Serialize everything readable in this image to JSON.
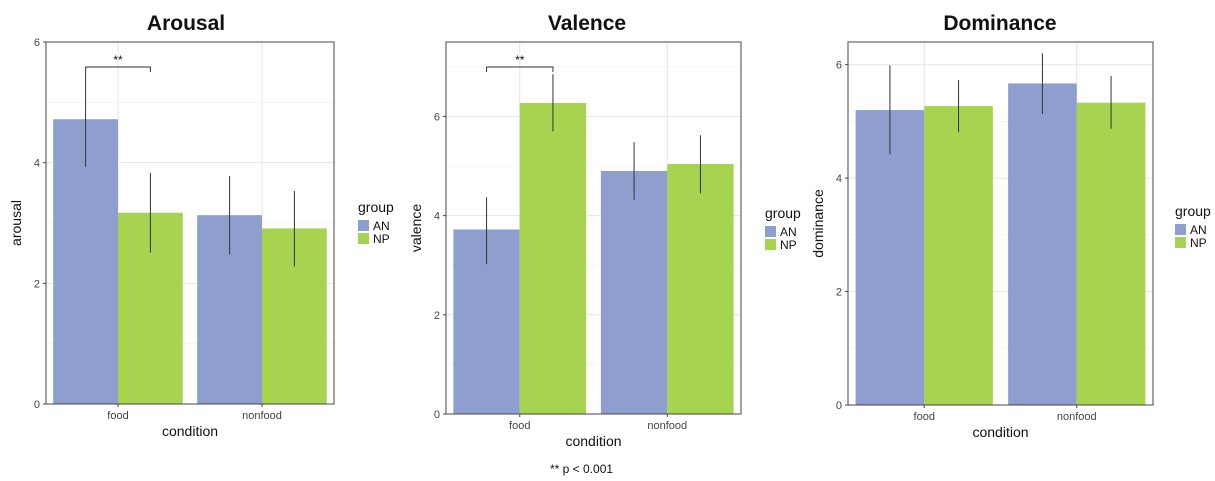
{
  "footnote": "** p < 0.001",
  "legend_title": "group",
  "colors": {
    "AN": "#8E9FCF",
    "NP": "#A6D450"
  },
  "chart_data": [
    {
      "type": "bar",
      "title": "Arousal",
      "xlabel": "condition",
      "ylabel": "arousal",
      "categories": [
        "food",
        "nonfood"
      ],
      "ylim": [
        0,
        6
      ],
      "yticks": [
        0,
        2,
        4,
        6
      ],
      "series": [
        {
          "name": "AN",
          "values": [
            4.72,
            3.13
          ],
          "err_low": [
            3.93,
            2.48
          ],
          "err_high": [
            5.5,
            3.78
          ]
        },
        {
          "name": "NP",
          "values": [
            3.17,
            2.91
          ],
          "err_low": [
            2.51,
            2.28
          ],
          "err_high": [
            3.83,
            3.53
          ]
        }
      ],
      "annotation": {
        "text": "**",
        "category": "food"
      },
      "legend": "right",
      "grid": true
    },
    {
      "type": "bar",
      "title": "Valence",
      "xlabel": "condition",
      "ylabel": "valence",
      "categories": [
        "food",
        "nonfood"
      ],
      "ylim": [
        0,
        7.5
      ],
      "yticks": [
        0,
        2,
        4,
        6
      ],
      "series": [
        {
          "name": "AN",
          "values": [
            3.72,
            4.9
          ],
          "err_low": [
            3.02,
            4.32
          ],
          "err_high": [
            4.37,
            5.48
          ]
        },
        {
          "name": "NP",
          "values": [
            6.27,
            5.04
          ],
          "err_low": [
            5.7,
            4.45
          ],
          "err_high": [
            6.85,
            5.62
          ]
        }
      ],
      "annotation": {
        "text": "**",
        "category": "food"
      },
      "legend": "right",
      "grid": true
    },
    {
      "type": "bar",
      "title": "Dominance",
      "xlabel": "condition",
      "ylabel": "dominance",
      "categories": [
        "food",
        "nonfood"
      ],
      "ylim": [
        0,
        6.4
      ],
      "yticks": [
        0,
        2,
        4,
        6
      ],
      "series": [
        {
          "name": "AN",
          "values": [
            5.2,
            5.67
          ],
          "err_low": [
            4.42,
            5.13
          ],
          "err_high": [
            5.99,
            6.2
          ]
        },
        {
          "name": "NP",
          "values": [
            5.27,
            5.33
          ],
          "err_low": [
            4.81,
            4.87
          ],
          "err_high": [
            5.73,
            5.8
          ]
        }
      ],
      "legend": "right",
      "grid": true
    }
  ]
}
